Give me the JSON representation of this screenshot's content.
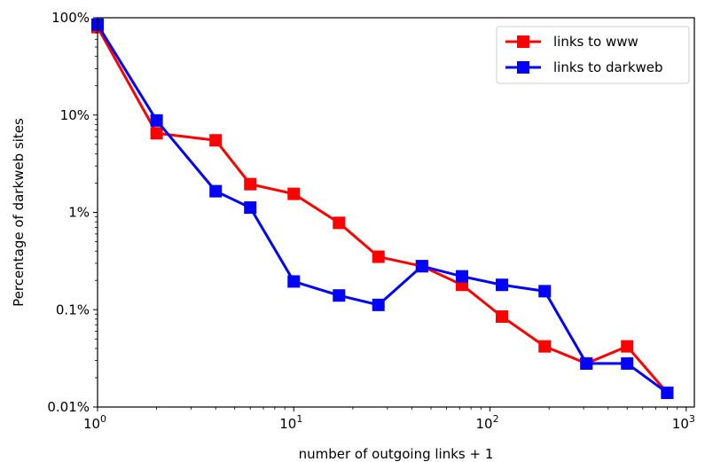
{
  "chart_data": {
    "type": "line",
    "xlabel": "number of outgoing links + 1",
    "ylabel": "Percentage of darkweb sites",
    "x_scale": "log",
    "y_scale": "log",
    "xlim": [
      1,
      1100
    ],
    "ylim": [
      0.0001,
      1
    ],
    "x_ticks": [
      {
        "value": 1,
        "base": "10",
        "exp": "0"
      },
      {
        "value": 10,
        "base": "10",
        "exp": "1"
      },
      {
        "value": 100,
        "base": "10",
        "exp": "2"
      },
      {
        "value": 1000,
        "base": "10",
        "exp": "3"
      }
    ],
    "y_ticks": [
      {
        "value": 1,
        "label": "100%"
      },
      {
        "value": 0.1,
        "label": "10%"
      },
      {
        "value": 0.01,
        "label": "1%"
      },
      {
        "value": 0.001,
        "label": "0.1%"
      },
      {
        "value": 0.0001,
        "label": "0.01%"
      }
    ],
    "grid": false,
    "legend": "top-right",
    "series": [
      {
        "name": "links to www",
        "color": "#ff0000",
        "x": [
          1,
          2,
          4,
          6,
          10,
          17,
          27,
          45,
          72,
          115,
          190,
          310,
          500,
          800
        ],
        "y": [
          0.8,
          0.065,
          0.055,
          0.0195,
          0.0155,
          0.0078,
          0.0035,
          0.0028,
          0.0018,
          0.00085,
          0.00042,
          0.00028,
          0.00042,
          0.00014
        ]
      },
      {
        "name": "links to darkweb",
        "color": "#0000ff",
        "x": [
          1,
          2,
          4,
          6,
          10,
          17,
          27,
          45,
          72,
          115,
          190,
          310,
          500,
          800
        ],
        "y": [
          0.85,
          0.088,
          0.0165,
          0.0112,
          0.00195,
          0.0014,
          0.00112,
          0.0028,
          0.0022,
          0.0018,
          0.00155,
          0.00028,
          0.00028,
          0.00014
        ]
      }
    ]
  }
}
